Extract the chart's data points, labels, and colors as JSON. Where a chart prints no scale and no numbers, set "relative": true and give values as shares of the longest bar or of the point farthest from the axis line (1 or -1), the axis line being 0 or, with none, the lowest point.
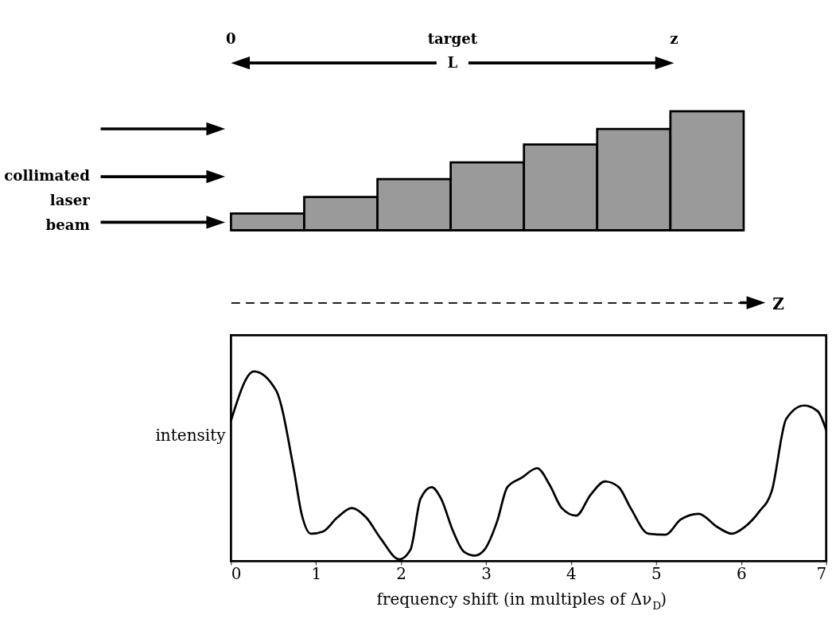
{
  "chart_data": [
    {
      "type": "bar",
      "relative": true,
      "categories": [
        null,
        null,
        null,
        null,
        null,
        null,
        null
      ],
      "values": [
        0.14,
        0.28,
        0.43,
        0.57,
        0.72,
        0.85,
        1.0
      ],
      "color": "#9a9a9a",
      "annotations": [
        "0",
        "target",
        "z",
        "L",
        "collimated laser beam",
        "Z"
      ]
    },
    {
      "type": "line",
      "relative": true,
      "color": "#000000",
      "xlim": [
        0,
        7
      ],
      "xticks": [
        0,
        1,
        2,
        3,
        4,
        5,
        6,
        7
      ],
      "xlabel": "frequency shift (in multiples of Δν$_{D}$)",
      "ylabel": "intensity",
      "x": [
        0,
        0.27,
        0.53,
        0.74,
        0.83,
        0.94,
        1.08,
        1.25,
        1.42,
        1.59,
        1.76,
        1.98,
        2.11,
        2.23,
        2.36,
        2.47,
        2.61,
        2.74,
        2.87,
        2.98,
        3.13,
        3.25,
        3.42,
        3.6,
        3.75,
        3.89,
        4.06,
        4.23,
        4.4,
        4.56,
        4.7,
        4.91,
        5.11,
        5.29,
        5.5,
        5.72,
        5.89,
        6.04,
        6.21,
        6.36,
        6.53,
        6.74,
        6.9,
        7
      ],
      "values": [
        0.74,
        1.0,
        0.9,
        0.48,
        0.25,
        0.145,
        0.156,
        0.23,
        0.28,
        0.23,
        0.12,
        0.01,
        0.06,
        0.33,
        0.39,
        0.33,
        0.16,
        0.05,
        0.03,
        0.06,
        0.21,
        0.39,
        0.44,
        0.49,
        0.4,
        0.28,
        0.24,
        0.35,
        0.42,
        0.39,
        0.28,
        0.145,
        0.14,
        0.22,
        0.25,
        0.18,
        0.145,
        0.18,
        0.26,
        0.37,
        0.75,
        0.82,
        0.79,
        0.69
      ]
    }
  ]
}
